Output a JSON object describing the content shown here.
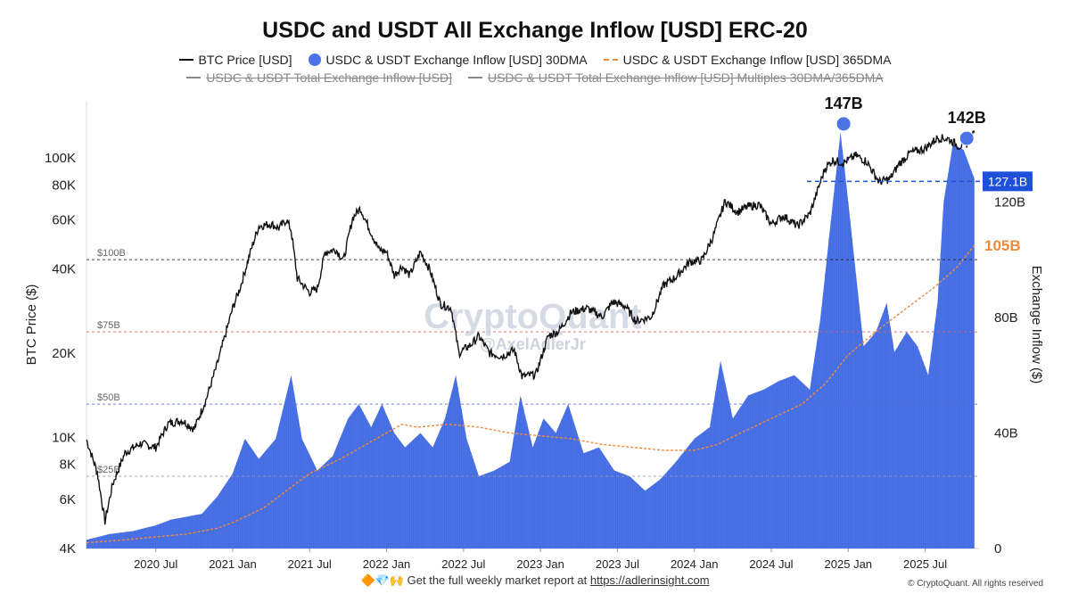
{
  "chart_data": {
    "type": "line+bar",
    "title": "USDC and USDT All Exchange Inflow [USD] ERC-20",
    "legend": [
      {
        "name": "BTC Price [USD]",
        "style": "line",
        "color": "#111111",
        "active": true
      },
      {
        "name": "USDC & USDT Exchange Inflow [USD] 30DMA",
        "style": "area",
        "color": "#4b73e6",
        "active": true
      },
      {
        "name": "USDC & USDT Exchange Inflow [USD] 365DMA",
        "style": "dashed",
        "color": "#f08a3c",
        "active": true
      },
      {
        "name": "USDC & USDT Total Exchange Inflow [USD]",
        "style": "line",
        "color": "#888888",
        "active": false
      },
      {
        "name": "USDC & USDT Total Exchange Inflow [USD] Multiples 30DMA/365DMA",
        "style": "line",
        "color": "#888888",
        "active": false
      }
    ],
    "x_ticks": [
      "2020 Jul",
      "2021 Jan",
      "2021 Jul",
      "2022 Jan",
      "2022 Jul",
      "2023 Jan",
      "2023 Jul",
      "2024 Jan",
      "2024 Jul",
      "2025 Jan",
      "2025 Jul"
    ],
    "x_tick_dates": [
      2020.5,
      2021.0,
      2021.5,
      2022.0,
      2022.5,
      2023.0,
      2023.5,
      2024.0,
      2024.5,
      2025.0,
      2025.5
    ],
    "x_range": [
      2020.05,
      2025.85
    ],
    "y_left": {
      "label": "BTC Price ($)",
      "scale": "log",
      "range": [
        4000,
        160000
      ],
      "ticks": [
        4000,
        6000,
        8000,
        10000,
        20000,
        40000,
        60000,
        80000,
        100000
      ],
      "tick_labels": [
        "4K",
        "6K",
        "8K",
        "10K",
        "20K",
        "40K",
        "60K",
        "80K",
        "100K"
      ]
    },
    "y_right": {
      "label": "Exchange Inflow ($)",
      "scale": "linear",
      "range": [
        0,
        155
      ],
      "ticks": [
        0,
        40,
        80,
        120
      ],
      "tick_labels": [
        "0",
        "40B",
        "80B",
        "120B"
      ]
    },
    "reference_lines": [
      {
        "value": 100,
        "label": "$100B",
        "color": "#222222"
      },
      {
        "value": 75,
        "label": "$75B",
        "color": "#e06060"
      },
      {
        "value": 50,
        "label": "$50B",
        "color": "#5c6bd6"
      },
      {
        "value": 25,
        "label": "$25B",
        "color": "#999999"
      }
    ],
    "annotations": [
      {
        "text": "147B",
        "x": 2024.97,
        "y": 147
      },
      {
        "text": "142B",
        "x": 2025.77,
        "y": 142
      }
    ],
    "current_value_tags": [
      {
        "text": "127.1B",
        "value": 127.1,
        "bg": "#1f50d8"
      },
      {
        "text": "105B",
        "value": 105,
        "color": "#f08a3c"
      }
    ],
    "watermark": [
      "CryptoQuant",
      "@AxelAdlerJr"
    ],
    "series": [
      {
        "name": "BTC Price [USD]",
        "points": [
          [
            2020.05,
            9800
          ],
          [
            2020.12,
            7500
          ],
          [
            2020.17,
            5000
          ],
          [
            2020.22,
            6800
          ],
          [
            2020.3,
            8800
          ],
          [
            2020.4,
            9500
          ],
          [
            2020.5,
            9200
          ],
          [
            2020.58,
            11200
          ],
          [
            2020.67,
            11500
          ],
          [
            2020.75,
            10700
          ],
          [
            2020.83,
            13800
          ],
          [
            2020.9,
            18300
          ],
          [
            2021.0,
            29000
          ],
          [
            2021.05,
            34500
          ],
          [
            2021.12,
            47000
          ],
          [
            2021.17,
            57000
          ],
          [
            2021.25,
            58000
          ],
          [
            2021.3,
            56000
          ],
          [
            2021.35,
            60000
          ],
          [
            2021.38,
            55000
          ],
          [
            2021.42,
            37000
          ],
          [
            2021.5,
            33000
          ],
          [
            2021.55,
            34000
          ],
          [
            2021.6,
            46000
          ],
          [
            2021.67,
            47000
          ],
          [
            2021.72,
            43000
          ],
          [
            2021.78,
            61000
          ],
          [
            2021.83,
            66000
          ],
          [
            2021.88,
            57000
          ],
          [
            2021.95,
            47000
          ],
          [
            2022.0,
            46000
          ],
          [
            2022.05,
            38000
          ],
          [
            2022.1,
            41000
          ],
          [
            2022.15,
            38000
          ],
          [
            2022.22,
            46000
          ],
          [
            2022.28,
            40000
          ],
          [
            2022.35,
            30000
          ],
          [
            2022.42,
            29000
          ],
          [
            2022.47,
            20000
          ],
          [
            2022.55,
            21500
          ],
          [
            2022.6,
            23000
          ],
          [
            2022.67,
            20000
          ],
          [
            2022.75,
            19500
          ],
          [
            2022.83,
            20500
          ],
          [
            2022.88,
            16500
          ],
          [
            2022.97,
            16800
          ],
          [
            2023.05,
            23000
          ],
          [
            2023.12,
            24000
          ],
          [
            2023.2,
            28000
          ],
          [
            2023.3,
            29000
          ],
          [
            2023.4,
            27000
          ],
          [
            2023.47,
            30500
          ],
          [
            2023.55,
            29500
          ],
          [
            2023.62,
            26000
          ],
          [
            2023.72,
            27000
          ],
          [
            2023.8,
            35000
          ],
          [
            2023.88,
            37500
          ],
          [
            2023.97,
            42500
          ],
          [
            2024.05,
            43000
          ],
          [
            2024.12,
            52000
          ],
          [
            2024.2,
            70000
          ],
          [
            2024.28,
            64000
          ],
          [
            2024.35,
            67000
          ],
          [
            2024.42,
            68000
          ],
          [
            2024.5,
            58000
          ],
          [
            2024.58,
            62000
          ],
          [
            2024.67,
            57000
          ],
          [
            2024.75,
            63000
          ],
          [
            2024.85,
            92000
          ],
          [
            2024.9,
            98000
          ],
          [
            2024.97,
            96000
          ],
          [
            2025.05,
            102000
          ],
          [
            2025.12,
            97000
          ],
          [
            2025.2,
            82000
          ],
          [
            2025.27,
            84000
          ],
          [
            2025.33,
            95000
          ],
          [
            2025.4,
            104000
          ],
          [
            2025.5,
            108000
          ],
          [
            2025.58,
            118000
          ],
          [
            2025.65,
            117000
          ],
          [
            2025.72,
            110000
          ],
          [
            2025.78,
            113000
          ],
          [
            2025.82,
            123000
          ]
        ]
      },
      {
        "name": "USDC & USDT Exchange Inflow [USD] 30DMA",
        "unit": "B",
        "points": [
          [
            2020.05,
            3
          ],
          [
            2020.2,
            5
          ],
          [
            2020.35,
            6
          ],
          [
            2020.5,
            8
          ],
          [
            2020.6,
            10
          ],
          [
            2020.7,
            11
          ],
          [
            2020.8,
            12
          ],
          [
            2020.9,
            18
          ],
          [
            2021.0,
            26
          ],
          [
            2021.08,
            38
          ],
          [
            2021.17,
            31
          ],
          [
            2021.28,
            38
          ],
          [
            2021.38,
            60
          ],
          [
            2021.45,
            38
          ],
          [
            2021.55,
            27
          ],
          [
            2021.65,
            32
          ],
          [
            2021.75,
            45
          ],
          [
            2021.82,
            50
          ],
          [
            2021.9,
            42
          ],
          [
            2021.97,
            50
          ],
          [
            2022.05,
            40
          ],
          [
            2022.12,
            35
          ],
          [
            2022.22,
            40
          ],
          [
            2022.3,
            35
          ],
          [
            2022.38,
            45
          ],
          [
            2022.45,
            60
          ],
          [
            2022.52,
            38
          ],
          [
            2022.6,
            25
          ],
          [
            2022.7,
            27
          ],
          [
            2022.8,
            30
          ],
          [
            2022.87,
            53
          ],
          [
            2022.95,
            35
          ],
          [
            2023.02,
            45
          ],
          [
            2023.1,
            40
          ],
          [
            2023.18,
            50
          ],
          [
            2023.28,
            33
          ],
          [
            2023.38,
            35
          ],
          [
            2023.48,
            27
          ],
          [
            2023.58,
            25
          ],
          [
            2023.68,
            20
          ],
          [
            2023.78,
            24
          ],
          [
            2023.88,
            30
          ],
          [
            2024.0,
            38
          ],
          [
            2024.1,
            42
          ],
          [
            2024.17,
            65
          ],
          [
            2024.25,
            45
          ],
          [
            2024.35,
            53
          ],
          [
            2024.45,
            55
          ],
          [
            2024.55,
            58
          ],
          [
            2024.65,
            60
          ],
          [
            2024.75,
            55
          ],
          [
            2024.82,
            80
          ],
          [
            2024.88,
            110
          ],
          [
            2024.95,
            144
          ],
          [
            2025.0,
            120
          ],
          [
            2025.05,
            95
          ],
          [
            2025.1,
            70
          ],
          [
            2025.18,
            75
          ],
          [
            2025.25,
            85
          ],
          [
            2025.3,
            68
          ],
          [
            2025.38,
            75
          ],
          [
            2025.45,
            70
          ],
          [
            2025.52,
            60
          ],
          [
            2025.58,
            85
          ],
          [
            2025.62,
            120
          ],
          [
            2025.68,
            140
          ],
          [
            2025.75,
            138
          ],
          [
            2025.82,
            128
          ]
        ]
      },
      {
        "name": "USDC & USDT Exchange Inflow [USD] 365DMA",
        "unit": "B",
        "points": [
          [
            2020.05,
            2
          ],
          [
            2020.3,
            3
          ],
          [
            2020.5,
            4
          ],
          [
            2020.7,
            5
          ],
          [
            2020.9,
            7
          ],
          [
            2021.0,
            9
          ],
          [
            2021.2,
            14
          ],
          [
            2021.4,
            22
          ],
          [
            2021.5,
            26
          ],
          [
            2021.7,
            31
          ],
          [
            2021.9,
            37
          ],
          [
            2022.0,
            40
          ],
          [
            2022.1,
            43
          ],
          [
            2022.2,
            42
          ],
          [
            2022.4,
            43
          ],
          [
            2022.6,
            42
          ],
          [
            2022.8,
            40
          ],
          [
            2023.0,
            39
          ],
          [
            2023.2,
            38
          ],
          [
            2023.4,
            36
          ],
          [
            2023.6,
            35
          ],
          [
            2023.8,
            34
          ],
          [
            2024.0,
            34
          ],
          [
            2024.15,
            36
          ],
          [
            2024.3,
            40
          ],
          [
            2024.5,
            45
          ],
          [
            2024.7,
            50
          ],
          [
            2024.85,
            57
          ],
          [
            2025.0,
            67
          ],
          [
            2025.2,
            76
          ],
          [
            2025.4,
            84
          ],
          [
            2025.55,
            90
          ],
          [
            2025.7,
            97
          ],
          [
            2025.82,
            105
          ]
        ]
      }
    ]
  },
  "footer": {
    "text": "Get the full weekly market report at ",
    "link": "https://adlerinsight.com",
    "emoji": "🔶💎🙌"
  },
  "copyright": "© CryptoQuant. All rights reserved"
}
